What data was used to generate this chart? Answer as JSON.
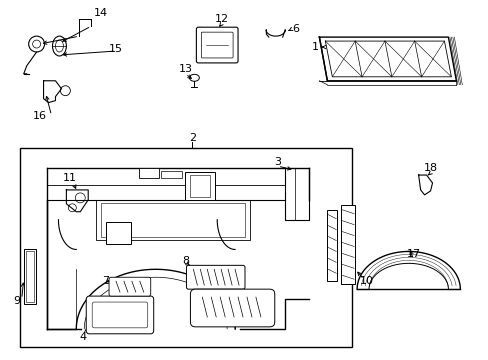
{
  "background_color": "#ffffff",
  "line_color": "#000000",
  "figsize": [
    4.89,
    3.6
  ],
  "dpi": 100,
  "font_size": 8
}
